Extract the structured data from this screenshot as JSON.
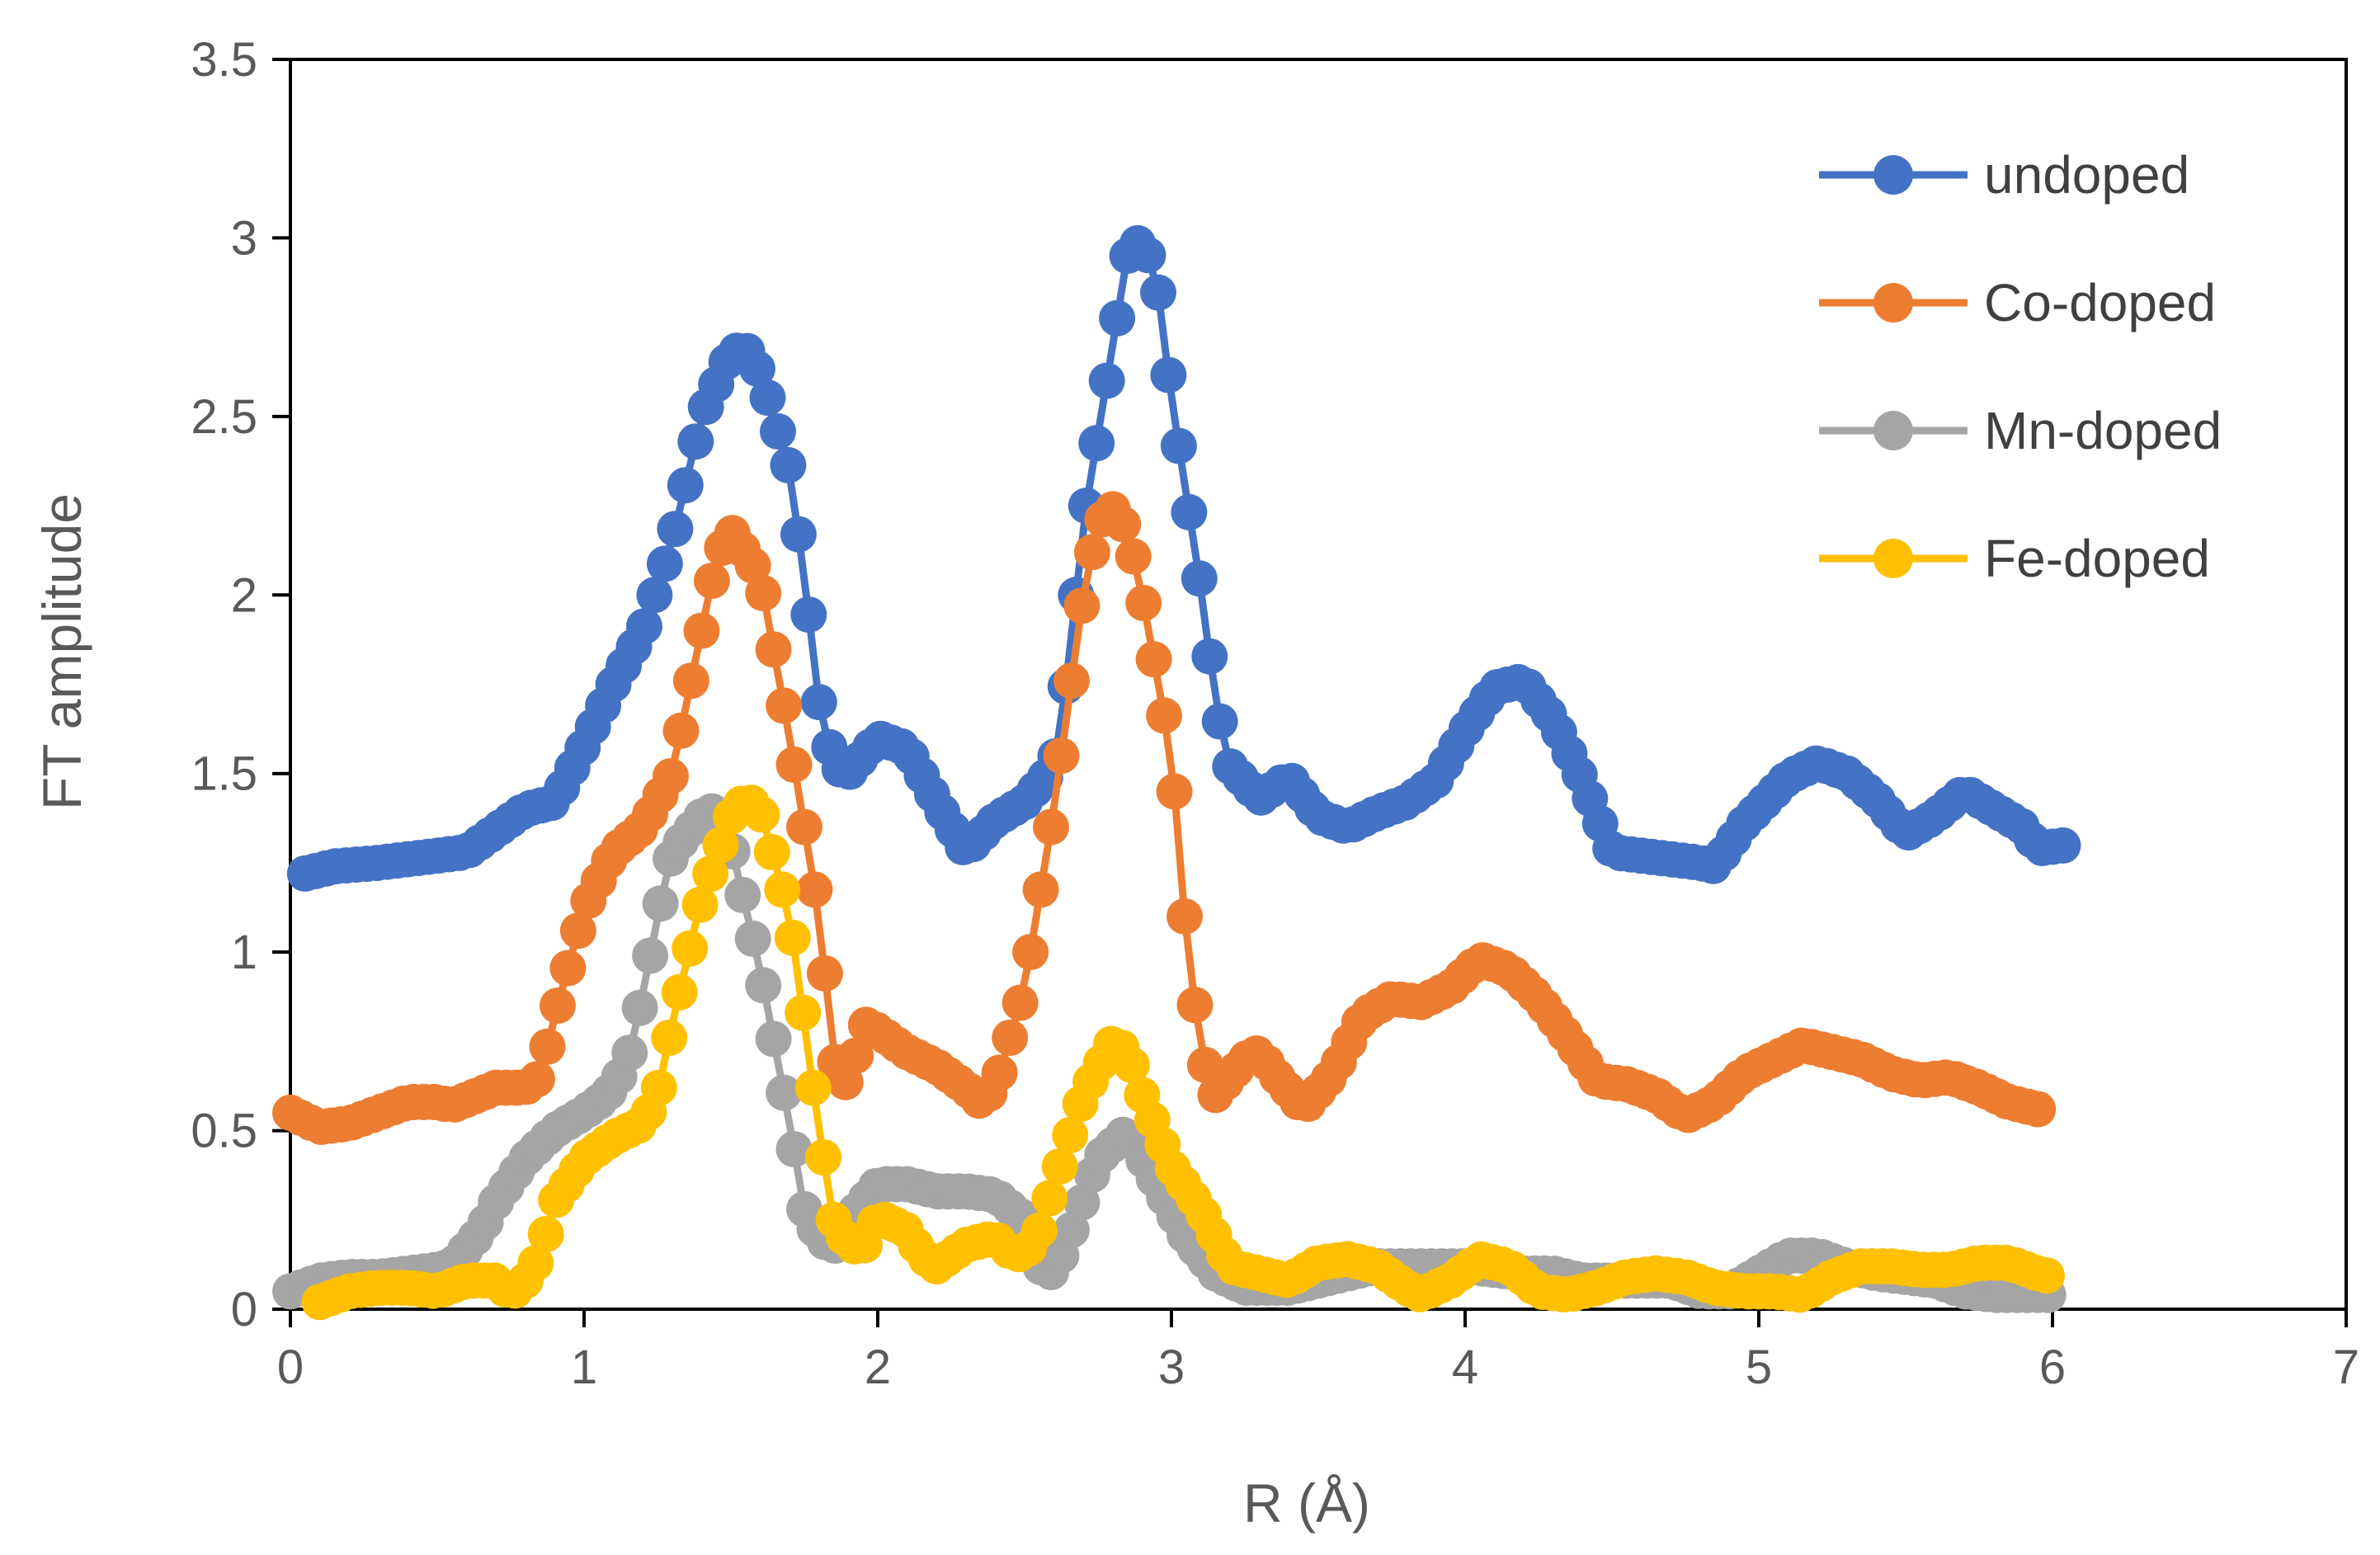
{
  "chart_data": {
    "type": "line",
    "title": "",
    "xlabel": "R (Å)",
    "ylabel": "FT amplitude",
    "xlim": [
      0,
      7
    ],
    "ylim": [
      0,
      3.5
    ],
    "x_ticks": [
      "0",
      "1",
      "2",
      "3",
      "4",
      "5",
      "6",
      "7"
    ],
    "y_ticks": [
      "0",
      "0.5",
      "1",
      "1.5",
      "2",
      "2.5",
      "3",
      "3.5"
    ],
    "legend_position": "top-right",
    "grid": false,
    "colors": {
      "undoped": "#4472C4",
      "Co-doped": "#ED7D31",
      "Mn-doped": "#A5A5A5",
      "Fe-doped": "#FFC000",
      "axis": "#000000",
      "tick_text": "#595959"
    },
    "series": [
      {
        "name": "undoped",
        "color": "#4472C4",
        "anchors": [
          [
            0.05,
            1.22
          ],
          [
            0.15,
            1.24
          ],
          [
            0.3,
            1.25
          ],
          [
            0.5,
            1.27
          ],
          [
            0.6,
            1.28
          ],
          [
            0.7,
            1.34
          ],
          [
            0.8,
            1.4
          ],
          [
            0.9,
            1.42
          ],
          [
            1.0,
            1.58
          ],
          [
            1.1,
            1.75
          ],
          [
            1.2,
            1.9
          ],
          [
            1.3,
            2.15
          ],
          [
            1.4,
            2.5
          ],
          [
            1.5,
            2.68
          ],
          [
            1.55,
            2.69
          ],
          [
            1.6,
            2.62
          ],
          [
            1.7,
            2.35
          ],
          [
            1.75,
            2.05
          ],
          [
            1.8,
            1.7
          ],
          [
            1.85,
            1.52
          ],
          [
            1.9,
            1.5
          ],
          [
            2.0,
            1.6
          ],
          [
            2.1,
            1.57
          ],
          [
            2.2,
            1.42
          ],
          [
            2.3,
            1.28
          ],
          [
            2.4,
            1.37
          ],
          [
            2.5,
            1.42
          ],
          [
            2.6,
            1.52
          ],
          [
            2.65,
            1.8
          ],
          [
            2.7,
            2.2
          ],
          [
            2.8,
            2.7
          ],
          [
            2.85,
            2.95
          ],
          [
            2.9,
            3.0
          ],
          [
            2.95,
            2.88
          ],
          [
            3.0,
            2.55
          ],
          [
            3.1,
            2.02
          ],
          [
            3.15,
            1.7
          ],
          [
            3.2,
            1.52
          ],
          [
            3.3,
            1.43
          ],
          [
            3.4,
            1.49
          ],
          [
            3.5,
            1.38
          ],
          [
            3.6,
            1.35
          ],
          [
            3.7,
            1.39
          ],
          [
            3.8,
            1.42
          ],
          [
            3.9,
            1.48
          ],
          [
            4.0,
            1.62
          ],
          [
            4.1,
            1.74
          ],
          [
            4.2,
            1.76
          ],
          [
            4.3,
            1.65
          ],
          [
            4.4,
            1.48
          ],
          [
            4.5,
            1.28
          ],
          [
            4.6,
            1.27
          ],
          [
            4.7,
            1.26
          ],
          [
            4.8,
            1.25
          ],
          [
            4.85,
            1.24
          ],
          [
            4.95,
            1.36
          ],
          [
            5.1,
            1.49
          ],
          [
            5.2,
            1.53
          ],
          [
            5.3,
            1.5
          ],
          [
            5.4,
            1.43
          ],
          [
            5.5,
            1.33
          ],
          [
            5.6,
            1.38
          ],
          [
            5.7,
            1.45
          ],
          [
            5.8,
            1.4
          ],
          [
            5.9,
            1.35
          ],
          [
            5.95,
            1.29
          ],
          [
            6.05,
            1.3
          ]
        ],
        "marker_x_start": 0.05,
        "marker_x_end": 6.05,
        "marker_step": 0.035
      },
      {
        "name": "Co-doped",
        "color": "#ED7D31",
        "anchors": [
          [
            0.0,
            0.55
          ],
          [
            0.1,
            0.51
          ],
          [
            0.2,
            0.52
          ],
          [
            0.3,
            0.55
          ],
          [
            0.4,
            0.58
          ],
          [
            0.5,
            0.58
          ],
          [
            0.55,
            0.57
          ],
          [
            0.7,
            0.62
          ],
          [
            0.8,
            0.62
          ],
          [
            0.85,
            0.65
          ],
          [
            0.9,
            0.82
          ],
          [
            1.0,
            1.12
          ],
          [
            1.1,
            1.28
          ],
          [
            1.2,
            1.35
          ],
          [
            1.3,
            1.5
          ],
          [
            1.4,
            1.9
          ],
          [
            1.45,
            2.1
          ],
          [
            1.5,
            2.18
          ],
          [
            1.6,
            2.05
          ],
          [
            1.7,
            1.6
          ],
          [
            1.8,
            1.1
          ],
          [
            1.85,
            0.7
          ],
          [
            1.9,
            0.62
          ],
          [
            1.95,
            0.8
          ],
          [
            2.0,
            0.78
          ],
          [
            2.1,
            0.72
          ],
          [
            2.2,
            0.68
          ],
          [
            2.3,
            0.62
          ],
          [
            2.35,
            0.58
          ],
          [
            2.4,
            0.62
          ],
          [
            2.5,
            0.9
          ],
          [
            2.6,
            1.4
          ],
          [
            2.7,
            2.0
          ],
          [
            2.75,
            2.2
          ],
          [
            2.8,
            2.24
          ],
          [
            2.85,
            2.18
          ],
          [
            2.9,
            2.0
          ],
          [
            3.0,
            1.55
          ],
          [
            3.05,
            1.05
          ],
          [
            3.1,
            0.72
          ],
          [
            3.15,
            0.6
          ],
          [
            3.25,
            0.7
          ],
          [
            3.3,
            0.72
          ],
          [
            3.35,
            0.66
          ],
          [
            3.45,
            0.56
          ],
          [
            3.55,
            0.66
          ],
          [
            3.65,
            0.82
          ],
          [
            3.75,
            0.87
          ],
          [
            3.85,
            0.86
          ],
          [
            3.95,
            0.9
          ],
          [
            4.05,
            0.98
          ],
          [
            4.15,
            0.95
          ],
          [
            4.25,
            0.87
          ],
          [
            4.35,
            0.76
          ],
          [
            4.45,
            0.64
          ],
          [
            4.55,
            0.63
          ],
          [
            4.65,
            0.6
          ],
          [
            4.75,
            0.54
          ],
          [
            4.85,
            0.58
          ],
          [
            4.95,
            0.66
          ],
          [
            5.05,
            0.7
          ],
          [
            5.15,
            0.74
          ],
          [
            5.25,
            0.72
          ],
          [
            5.35,
            0.7
          ],
          [
            5.45,
            0.66
          ],
          [
            5.55,
            0.64
          ],
          [
            5.65,
            0.65
          ],
          [
            5.75,
            0.62
          ],
          [
            5.85,
            0.58
          ],
          [
            5.95,
            0.56
          ]
        ],
        "marker_x_start": 0.0,
        "marker_x_end": 5.95,
        "marker_step": 0.035
      },
      {
        "name": "Mn-doped",
        "color": "#A5A5A5",
        "anchors": [
          [
            0.0,
            0.05
          ],
          [
            0.1,
            0.08
          ],
          [
            0.2,
            0.09
          ],
          [
            0.3,
            0.09
          ],
          [
            0.4,
            0.1
          ],
          [
            0.5,
            0.11
          ],
          [
            0.55,
            0.12
          ],
          [
            0.65,
            0.22
          ],
          [
            0.7,
            0.3
          ],
          [
            0.8,
            0.42
          ],
          [
            0.9,
            0.5
          ],
          [
            1.0,
            0.55
          ],
          [
            1.05,
            0.58
          ],
          [
            1.1,
            0.62
          ],
          [
            1.15,
            0.7
          ],
          [
            1.2,
            0.88
          ],
          [
            1.25,
            1.1
          ],
          [
            1.3,
            1.28
          ],
          [
            1.4,
            1.38
          ],
          [
            1.45,
            1.4
          ],
          [
            1.5,
            1.3
          ],
          [
            1.6,
            0.95
          ],
          [
            1.7,
            0.52
          ],
          [
            1.75,
            0.28
          ],
          [
            1.8,
            0.2
          ],
          [
            1.85,
            0.17
          ],
          [
            1.9,
            0.25
          ],
          [
            2.0,
            0.35
          ],
          [
            2.1,
            0.35
          ],
          [
            2.2,
            0.33
          ],
          [
            2.3,
            0.33
          ],
          [
            2.4,
            0.32
          ],
          [
            2.5,
            0.25
          ],
          [
            2.55,
            0.12
          ],
          [
            2.6,
            0.1
          ],
          [
            2.65,
            0.2
          ],
          [
            2.75,
            0.42
          ],
          [
            2.85,
            0.5
          ],
          [
            2.95,
            0.35
          ],
          [
            3.05,
            0.2
          ],
          [
            3.15,
            0.1
          ],
          [
            3.25,
            0.06
          ],
          [
            3.4,
            0.06
          ],
          [
            3.5,
            0.08
          ],
          [
            3.6,
            0.1
          ],
          [
            3.7,
            0.12
          ],
          [
            3.8,
            0.12
          ],
          [
            3.9,
            0.12
          ],
          [
            4.0,
            0.12
          ],
          [
            4.1,
            0.11
          ],
          [
            4.2,
            0.1
          ],
          [
            4.3,
            0.1
          ],
          [
            4.4,
            0.08
          ],
          [
            4.5,
            0.08
          ],
          [
            4.6,
            0.08
          ],
          [
            4.7,
            0.08
          ],
          [
            4.8,
            0.05
          ],
          [
            4.9,
            0.05
          ],
          [
            5.0,
            0.1
          ],
          [
            5.1,
            0.15
          ],
          [
            5.2,
            0.15
          ],
          [
            5.3,
            0.12
          ],
          [
            5.4,
            0.1
          ],
          [
            5.5,
            0.09
          ],
          [
            5.6,
            0.08
          ],
          [
            5.7,
            0.05
          ],
          [
            5.8,
            0.04
          ],
          [
            5.9,
            0.04
          ],
          [
            6.0,
            0.04
          ]
        ],
        "marker_x_start": 0.0,
        "marker_x_end": 6.0,
        "marker_step": 0.035
      },
      {
        "name": "Fe-doped",
        "color": "#FFC000",
        "anchors": [
          [
            0.1,
            0.02
          ],
          [
            0.2,
            0.05
          ],
          [
            0.3,
            0.06
          ],
          [
            0.4,
            0.06
          ],
          [
            0.5,
            0.05
          ],
          [
            0.6,
            0.08
          ],
          [
            0.7,
            0.08
          ],
          [
            0.75,
            0.04
          ],
          [
            0.8,
            0.08
          ],
          [
            0.85,
            0.15
          ],
          [
            0.9,
            0.3
          ],
          [
            1.0,
            0.42
          ],
          [
            1.1,
            0.48
          ],
          [
            1.2,
            0.52
          ],
          [
            1.25,
            0.6
          ],
          [
            1.3,
            0.8
          ],
          [
            1.4,
            1.15
          ],
          [
            1.5,
            1.38
          ],
          [
            1.55,
            1.43
          ],
          [
            1.6,
            1.4
          ],
          [
            1.7,
            1.1
          ],
          [
            1.75,
            0.8
          ],
          [
            1.8,
            0.5
          ],
          [
            1.85,
            0.25
          ],
          [
            1.9,
            0.18
          ],
          [
            1.95,
            0.17
          ],
          [
            2.0,
            0.26
          ],
          [
            2.1,
            0.22
          ],
          [
            2.15,
            0.15
          ],
          [
            2.2,
            0.12
          ],
          [
            2.3,
            0.18
          ],
          [
            2.4,
            0.2
          ],
          [
            2.45,
            0.16
          ],
          [
            2.5,
            0.15
          ],
          [
            2.55,
            0.22
          ],
          [
            2.6,
            0.35
          ],
          [
            2.7,
            0.6
          ],
          [
            2.8,
            0.75
          ],
          [
            2.85,
            0.72
          ],
          [
            2.9,
            0.6
          ],
          [
            3.0,
            0.4
          ],
          [
            3.1,
            0.28
          ],
          [
            3.2,
            0.12
          ],
          [
            3.3,
            0.1
          ],
          [
            3.4,
            0.08
          ],
          [
            3.5,
            0.13
          ],
          [
            3.6,
            0.14
          ],
          [
            3.7,
            0.12
          ],
          [
            3.8,
            0.06
          ],
          [
            3.85,
            0.04
          ],
          [
            3.95,
            0.08
          ],
          [
            4.05,
            0.14
          ],
          [
            4.15,
            0.12
          ],
          [
            4.25,
            0.05
          ],
          [
            4.35,
            0.04
          ],
          [
            4.45,
            0.06
          ],
          [
            4.55,
            0.09
          ],
          [
            4.65,
            0.1
          ],
          [
            4.75,
            0.09
          ],
          [
            4.85,
            0.06
          ],
          [
            4.95,
            0.05
          ],
          [
            5.05,
            0.05
          ],
          [
            5.15,
            0.04
          ],
          [
            5.25,
            0.09
          ],
          [
            5.35,
            0.12
          ],
          [
            5.45,
            0.12
          ],
          [
            5.55,
            0.11
          ],
          [
            5.65,
            0.11
          ],
          [
            5.75,
            0.13
          ],
          [
            5.85,
            0.13
          ],
          [
            5.95,
            0.1
          ],
          [
            6.0,
            0.09
          ]
        ],
        "marker_x_start": 0.1,
        "marker_x_end": 6.0,
        "marker_step": 0.035
      }
    ]
  }
}
